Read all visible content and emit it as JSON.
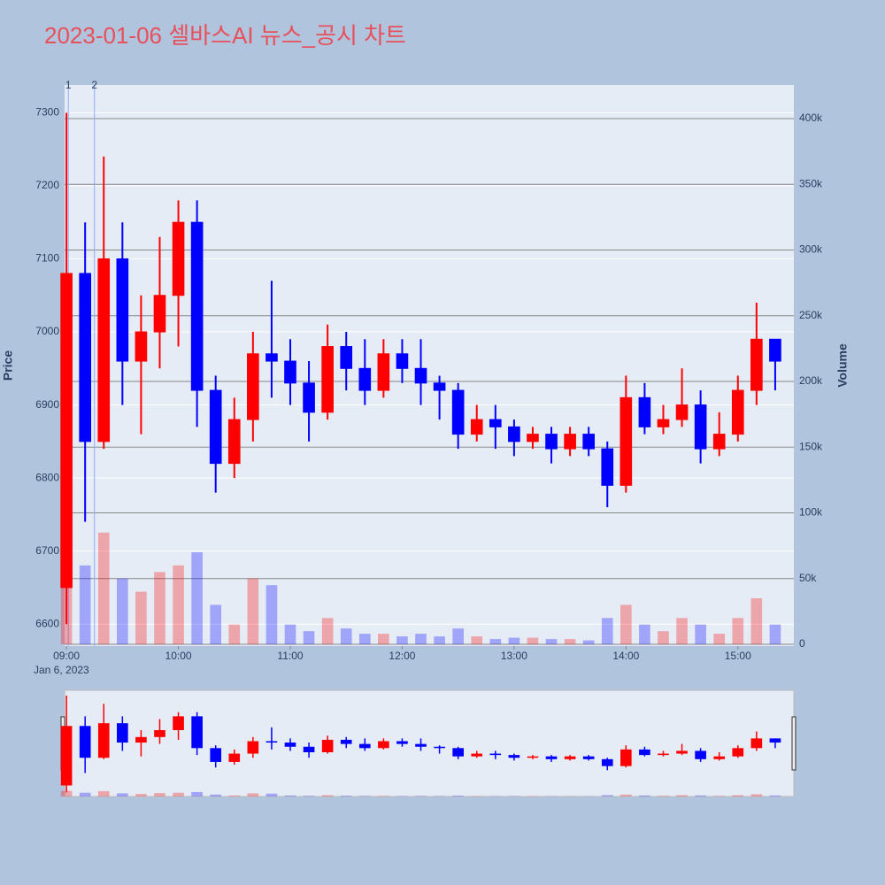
{
  "chart_data": {
    "type": "candlestick",
    "title": "2023-01-06 셀바스AI 뉴스_공시 차트",
    "y_label": "Price",
    "y2_label": "Volume",
    "x_date_label": "Jan 6, 2023",
    "increasing_color": "#ff0000",
    "decreasing_color": "#0000ff",
    "grid": true,
    "rangeslider": true,
    "x": [
      "2023-01-06 09:00",
      "2023-01-06 09:10",
      "2023-01-06 09:20",
      "2023-01-06 09:30",
      "2023-01-06 09:40",
      "2023-01-06 09:50",
      "2023-01-06 10:00",
      "2023-01-06 10:10",
      "2023-01-06 10:20",
      "2023-01-06 10:30",
      "2023-01-06 10:40",
      "2023-01-06 10:50",
      "2023-01-06 11:00",
      "2023-01-06 11:10",
      "2023-01-06 11:20",
      "2023-01-06 11:30",
      "2023-01-06 11:40",
      "2023-01-06 11:50",
      "2023-01-06 12:00",
      "2023-01-06 12:10",
      "2023-01-06 12:20",
      "2023-01-06 12:30",
      "2023-01-06 12:40",
      "2023-01-06 12:50",
      "2023-01-06 13:00",
      "2023-01-06 13:10",
      "2023-01-06 13:20",
      "2023-01-06 13:30",
      "2023-01-06 13:40",
      "2023-01-06 13:50",
      "2023-01-06 14:00",
      "2023-01-06 14:10",
      "2023-01-06 14:20",
      "2023-01-06 14:30",
      "2023-01-06 14:40",
      "2023-01-06 14:50",
      "2023-01-06 15:00",
      "2023-01-06 15:10",
      "2023-01-06 15:20"
    ],
    "open": [
      6650,
      7080,
      6850,
      7100,
      6960,
      7000,
      7050,
      7150,
      6920,
      6820,
      6880,
      6970,
      6960,
      6930,
      6890,
      6980,
      6950,
      6920,
      6970,
      6950,
      6930,
      6920,
      6860,
      6880,
      6870,
      6850,
      6860,
      6840,
      6860,
      6840,
      6790,
      6910,
      6870,
      6880,
      6900,
      6840,
      6860,
      6920,
      6990
    ],
    "high": [
      7300,
      7150,
      7240,
      7150,
      7050,
      7130,
      7180,
      7180,
      6940,
      6910,
      7000,
      7070,
      6990,
      6960,
      7010,
      7000,
      6990,
      6990,
      6990,
      6990,
      6940,
      6930,
      6900,
      6900,
      6880,
      6870,
      6870,
      6870,
      6870,
      6850,
      6940,
      6930,
      6900,
      6950,
      6920,
      6890,
      6940,
      7040,
      6990
    ],
    "low": [
      6600,
      6740,
      6840,
      6900,
      6860,
      6950,
      6980,
      6870,
      6780,
      6800,
      6850,
      6910,
      6900,
      6850,
      6880,
      6920,
      6900,
      6910,
      6930,
      6900,
      6880,
      6840,
      6850,
      6840,
      6830,
      6840,
      6820,
      6830,
      6830,
      6760,
      6780,
      6860,
      6860,
      6870,
      6820,
      6830,
      6850,
      6900,
      6920
    ],
    "close": [
      7080,
      6850,
      7100,
      6960,
      7000,
      7050,
      7150,
      6920,
      6820,
      6880,
      6970,
      6960,
      6930,
      6890,
      6980,
      6950,
      6920,
      6970,
      6950,
      6930,
      6920,
      6860,
      6880,
      6870,
      6850,
      6860,
      6840,
      6860,
      6840,
      6790,
      6910,
      6870,
      6880,
      6900,
      6840,
      6860,
      6920,
      6990,
      6960
    ],
    "volume": [
      90000,
      60000,
      85000,
      50000,
      40000,
      55000,
      60000,
      70000,
      30000,
      15000,
      50000,
      45000,
      15000,
      10000,
      20000,
      12000,
      8000,
      8000,
      6000,
      8000,
      6000,
      12000,
      6000,
      4000,
      5000,
      5000,
      4000,
      4000,
      3000,
      20000,
      30000,
      15000,
      10000,
      20000,
      15000,
      8000,
      20000,
      35000,
      15000
    ],
    "xlim": [
      "2023-01-06 08:59",
      "2023-01-06 15:30"
    ],
    "xticks": [
      {
        "value": "2023-01-06 09:00",
        "label": "09:00"
      },
      {
        "value": "2023-01-06 10:00",
        "label": "10:00"
      },
      {
        "value": "2023-01-06 11:00",
        "label": "11:00"
      },
      {
        "value": "2023-01-06 12:00",
        "label": "12:00"
      },
      {
        "value": "2023-01-06 13:00",
        "label": "13:00"
      },
      {
        "value": "2023-01-06 14:00",
        "label": "14:00"
      },
      {
        "value": "2023-01-06 15:00",
        "label": "15:00"
      }
    ],
    "ylim": [
      6570,
      7338
    ],
    "yticks": [
      6600,
      6700,
      6800,
      6900,
      7000,
      7100,
      7200,
      7300
    ],
    "y2lim": [
      -1350,
      425600
    ],
    "y2ticks": [
      0,
      {
        "value": 50000,
        "label": "50k"
      },
      {
        "value": 100000,
        "label": "100k"
      },
      {
        "value": 150000,
        "label": "150k"
      },
      {
        "value": 200000,
        "label": "200k"
      },
      {
        "value": 250000,
        "label": "250k"
      },
      {
        "value": 300000,
        "label": "300k"
      },
      {
        "value": 350000,
        "label": "350k"
      },
      {
        "value": 400000,
        "label": "400k"
      }
    ],
    "annotations": [
      {
        "x": "2023-01-06 09:01",
        "text": "1"
      },
      {
        "x": "2023-01-06 09:15",
        "text": "2"
      }
    ]
  }
}
